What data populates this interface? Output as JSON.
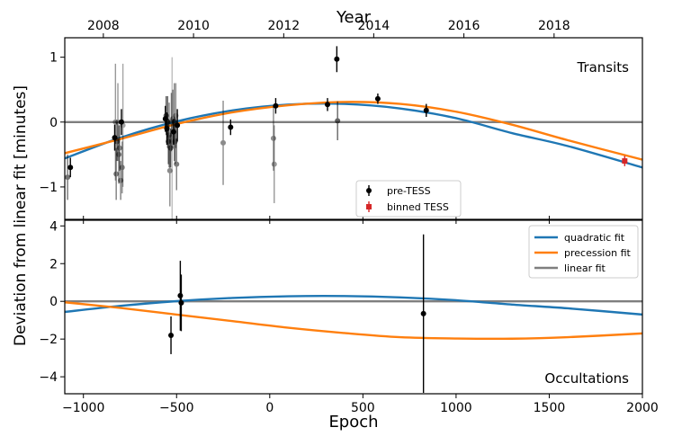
{
  "chart_data": {
    "type": "scatter",
    "ylabel": "Deviation from linear fit [minutes]",
    "xlabel": "Epoch",
    "top_axis": {
      "label": "Year",
      "ticks": [
        {
          "epoch": -893,
          "label": "2008"
        },
        {
          "epoch": -409,
          "label": "2010"
        },
        {
          "epoch": 75,
          "label": "2012"
        },
        {
          "epoch": 558,
          "label": "2014"
        },
        {
          "epoch": 1042,
          "label": "2016"
        },
        {
          "epoch": 1526,
          "label": "2018"
        }
      ]
    },
    "xlim": [
      -1100,
      2000
    ],
    "xticks": [
      {
        "value": -1000,
        "label": "−1000"
      },
      {
        "value": -500,
        "label": "−500"
      },
      {
        "value": 0,
        "label": "0"
      },
      {
        "value": 500,
        "label": "500"
      },
      {
        "value": 1000,
        "label": "1000"
      },
      {
        "value": 1500,
        "label": "1500"
      },
      {
        "value": 2000,
        "label": "2000"
      }
    ],
    "colors": {
      "quadratic": "#1f77b4",
      "precession": "#ff7f0e",
      "linear": "#7f7f7f",
      "tess": "#d62728",
      "data": "#000000"
    },
    "panels": [
      {
        "id": "transits",
        "title": "Transits",
        "ylim": [
          -1.5,
          1.3
        ],
        "yticks": [
          {
            "value": -1,
            "label": "−1"
          },
          {
            "value": 0,
            "label": "0"
          },
          {
            "value": 1,
            "label": "1"
          }
        ],
        "curves": [
          {
            "name": "quadratic fit",
            "x": [
              -1100,
              -800,
              -500,
              -200,
              100,
              400,
              700,
              1000,
              1300,
              1600,
              2000
            ],
            "y": [
              -0.56,
              -0.24,
              0.01,
              0.18,
              0.27,
              0.28,
              0.21,
              0.06,
              -0.17,
              -0.37,
              -0.7
            ]
          },
          {
            "name": "precession fit",
            "x": [
              -1100,
              -800,
              -500,
              -200,
              100,
              400,
              700,
              1000,
              1300,
              1600,
              2000
            ],
            "y": [
              -0.48,
              -0.26,
              -0.03,
              0.15,
              0.26,
              0.31,
              0.28,
              0.16,
              -0.04,
              -0.28,
              -0.58
            ]
          },
          {
            "name": "linear fit",
            "x": [
              -1100,
              2000
            ],
            "y": [
              0,
              0
            ]
          }
        ],
        "pre_tess": {
          "label": "pre-TESS",
          "points": [
            {
              "x": -1085,
              "y": -0.85,
              "err": 0.35,
              "alpha": 0.55
            },
            {
              "x": -1070,
              "y": -0.7,
              "err": 0.15,
              "alpha": 1.0
            },
            {
              "x": -832,
              "y": -0.24,
              "err": 0.2,
              "alpha": 1.0
            },
            {
              "x": -828,
              "y": 0.0,
              "err": 0.9,
              "alpha": 0.4
            },
            {
              "x": -824,
              "y": -0.8,
              "err": 0.4,
              "alpha": 0.5
            },
            {
              "x": -820,
              "y": -0.3,
              "err": 0.3,
              "alpha": 0.6
            },
            {
              "x": -815,
              "y": 0.0,
              "err": 0.6,
              "alpha": 0.4
            },
            {
              "x": -810,
              "y": -0.5,
              "err": 0.45,
              "alpha": 0.5
            },
            {
              "x": -806,
              "y": -0.4,
              "err": 0.35,
              "alpha": 0.5
            },
            {
              "x": -800,
              "y": -0.9,
              "err": 0.3,
              "alpha": 0.5
            },
            {
              "x": -796,
              "y": 0.0,
              "err": 0.2,
              "alpha": 1.0
            },
            {
              "x": -792,
              "y": -0.7,
              "err": 0.4,
              "alpha": 0.45
            },
            {
              "x": -788,
              "y": -0.05,
              "err": 0.95,
              "alpha": 0.35
            },
            {
              "x": -560,
              "y": 0.05,
              "err": 0.2,
              "alpha": 1.0
            },
            {
              "x": -556,
              "y": 0.1,
              "err": 0.3,
              "alpha": 0.6
            },
            {
              "x": -552,
              "y": -0.1,
              "err": 0.25,
              "alpha": 1.0
            },
            {
              "x": -548,
              "y": 0.0,
              "err": 0.4,
              "alpha": 0.6
            },
            {
              "x": -544,
              "y": -0.3,
              "err": 0.35,
              "alpha": 0.6
            },
            {
              "x": -540,
              "y": -0.2,
              "err": 0.5,
              "alpha": 0.5
            },
            {
              "x": -536,
              "y": -0.75,
              "err": 0.55,
              "alpha": 0.45
            },
            {
              "x": -532,
              "y": -0.4,
              "err": 0.3,
              "alpha": 0.6
            },
            {
              "x": -528,
              "y": 0.0,
              "err": 0.45,
              "alpha": 0.5
            },
            {
              "x": -524,
              "y": -0.3,
              "err": 1.3,
              "alpha": 0.25
            },
            {
              "x": -520,
              "y": 0.05,
              "err": 0.45,
              "alpha": 0.5
            },
            {
              "x": -516,
              "y": -0.15,
              "err": 0.2,
              "alpha": 1.0
            },
            {
              "x": -512,
              "y": 0.0,
              "err": 0.6,
              "alpha": 0.5
            },
            {
              "x": -508,
              "y": -0.3,
              "err": 0.35,
              "alpha": 0.5
            },
            {
              "x": -504,
              "y": 0.1,
              "err": 0.5,
              "alpha": 0.4
            },
            {
              "x": -500,
              "y": -0.65,
              "err": 0.4,
              "alpha": 0.5
            },
            {
              "x": -496,
              "y": -0.05,
              "err": 0.25,
              "alpha": 1.0
            },
            {
              "x": -250,
              "y": -0.32,
              "err": 0.65,
              "alpha": 0.45
            },
            {
              "x": -210,
              "y": -0.08,
              "err": 0.12,
              "alpha": 1.0
            },
            {
              "x": 20,
              "y": -0.25,
              "err": 0.5,
              "alpha": 0.45
            },
            {
              "x": 24,
              "y": -0.65,
              "err": 0.6,
              "alpha": 0.4
            },
            {
              "x": 32,
              "y": 0.25,
              "err": 0.12,
              "alpha": 1.0
            },
            {
              "x": 310,
              "y": 0.27,
              "err": 0.1,
              "alpha": 1.0
            },
            {
              "x": 360,
              "y": 0.97,
              "err": 0.2,
              "alpha": 1.0
            },
            {
              "x": 364,
              "y": 0.02,
              "err": 0.3,
              "alpha": 0.6
            },
            {
              "x": 580,
              "y": 0.36,
              "err": 0.08,
              "alpha": 1.0
            },
            {
              "x": 840,
              "y": 0.18,
              "err": 0.1,
              "alpha": 1.0
            }
          ]
        },
        "tess": {
          "label": "binned TESS",
          "points": [
            {
              "x": 1905,
              "y": -0.6,
              "err": 0.08
            }
          ]
        }
      },
      {
        "id": "occultations",
        "title": "Occultations",
        "ylim": [
          -4.9,
          4.3
        ],
        "yticks": [
          {
            "value": -4,
            "label": "−4"
          },
          {
            "value": -2,
            "label": "−2"
          },
          {
            "value": 0,
            "label": "0"
          },
          {
            "value": 2,
            "label": "2"
          },
          {
            "value": 4,
            "label": "4"
          }
        ],
        "curves": [
          {
            "name": "quadratic fit",
            "x": [
              -1100,
              -800,
              -500,
              -200,
              100,
              400,
              700,
              1000,
              1300,
              1600,
              2000
            ],
            "y": [
              -0.56,
              -0.24,
              0.01,
              0.18,
              0.27,
              0.28,
              0.21,
              0.06,
              -0.17,
              -0.37,
              -0.7
            ]
          },
          {
            "name": "precession fit",
            "x": [
              -1100,
              -800,
              -500,
              -200,
              100,
              400,
              700,
              1000,
              1300,
              1600,
              2000
            ],
            "y": [
              -0.05,
              -0.35,
              -0.7,
              -1.05,
              -1.4,
              -1.68,
              -1.9,
              -1.97,
              -1.98,
              -1.9,
              -1.7
            ]
          },
          {
            "name": "linear fit",
            "x": [
              -1100,
              2000
            ],
            "y": [
              0,
              0
            ]
          }
        ],
        "points": [
          {
            "x": -530,
            "y": -1.8,
            "err": 1.0
          },
          {
            "x": -480,
            "y": 0.3,
            "err": 1.85
          },
          {
            "x": -475,
            "y": -0.08,
            "err": 1.5
          },
          {
            "x": 825,
            "y": -0.65,
            "err": 4.2
          }
        ],
        "legend": [
          "quadratic fit",
          "precession fit",
          "linear fit"
        ]
      }
    ]
  }
}
